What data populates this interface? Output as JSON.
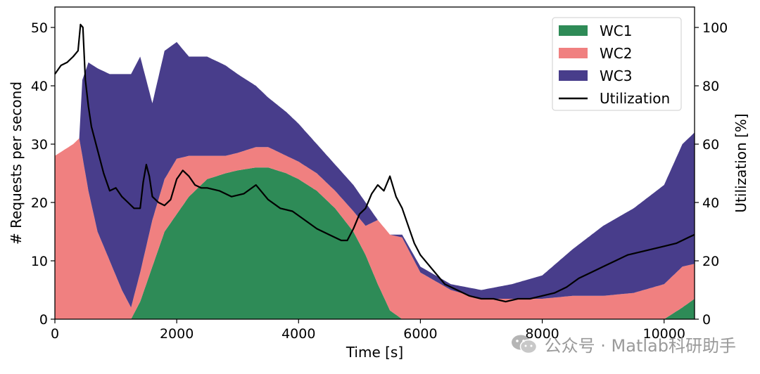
{
  "chart_data": {
    "type": "area",
    "xlabel": "Time [s]",
    "ylabel": "# Requests per second",
    "y2label": "Utilization [%]",
    "xlim": [
      0,
      10500
    ],
    "ylim": [
      0,
      53.5
    ],
    "y2lim": [
      0,
      107
    ],
    "xticks": [
      0,
      2000,
      4000,
      6000,
      8000,
      10000
    ],
    "yticks": [
      0,
      10,
      20,
      30,
      40,
      50
    ],
    "y2ticks": [
      0,
      20,
      40,
      60,
      80,
      100
    ],
    "legend_position": "top-right",
    "stack_order": [
      "WC1",
      "WC2",
      "WC3"
    ],
    "series": [
      {
        "name": "WC1",
        "color": "#2e8b57",
        "x": [
          0,
          1000,
          1250,
          1400,
          1600,
          1800,
          2000,
          2200,
          2500,
          2800,
          3000,
          3300,
          3500,
          3800,
          4000,
          4300,
          4600,
          4900,
          5100,
          5300,
          5500,
          5700,
          6000,
          8000,
          9500,
          10000,
          10300,
          10500
        ],
        "values": [
          0,
          0,
          0,
          3,
          9,
          15,
          18,
          21,
          24,
          25,
          25.5,
          26,
          26,
          25,
          24,
          22,
          19,
          15,
          11,
          6,
          1.5,
          0,
          0,
          0,
          0,
          0,
          2,
          3.5
        ]
      },
      {
        "name": "WC2",
        "color": "#f08080",
        "x": [
          0,
          300,
          400,
          450,
          550,
          700,
          900,
          1100,
          1250,
          1400,
          1600,
          1800,
          2000,
          2200,
          2500,
          2800,
          3000,
          3300,
          3500,
          3800,
          4000,
          4300,
          4600,
          4900,
          5100,
          5300,
          5500,
          5700,
          6000,
          6500,
          7000,
          7500,
          8000,
          8500,
          9000,
          9500,
          10000,
          10300,
          10500
        ],
        "values": [
          28,
          30,
          31,
          28,
          22,
          15,
          10,
          5,
          2,
          5,
          8,
          9,
          9.5,
          7,
          4,
          3,
          3,
          3.5,
          3.5,
          3,
          3,
          3,
          3,
          3.5,
          5,
          11,
          13,
          14,
          8,
          5,
          3.5,
          3.5,
          3.5,
          4,
          4,
          4.5,
          6,
          7,
          6
        ]
      },
      {
        "name": "WC3",
        "color": "#483d8b",
        "x": [
          0,
          300,
          400,
          450,
          550,
          700,
          900,
          1100,
          1250,
          1400,
          1600,
          1800,
          2000,
          2200,
          2500,
          2800,
          3000,
          3300,
          3500,
          3800,
          4000,
          4300,
          4600,
          4900,
          5100,
          5300,
          5500,
          5700,
          6000,
          6500,
          7000,
          7500,
          8000,
          8500,
          9000,
          9500,
          10000,
          10300,
          10500
        ],
        "values": [
          0,
          0,
          0,
          13,
          22,
          28,
          32,
          37,
          40,
          37,
          20,
          22,
          20,
          17,
          17,
          15.5,
          13.5,
          10.5,
          8.5,
          7.5,
          6.5,
          5,
          4.5,
          4.5,
          4,
          0,
          0,
          0.5,
          1,
          1,
          1.5,
          2.5,
          4,
          8,
          12,
          14.5,
          17,
          21,
          22.5
        ]
      }
    ],
    "utilization": {
      "name": "Utilization",
      "color": "#000000",
      "x": [
        0,
        100,
        200,
        300,
        380,
        420,
        460,
        500,
        550,
        600,
        700,
        800,
        900,
        1000,
        1100,
        1200,
        1300,
        1400,
        1450,
        1500,
        1550,
        1600,
        1700,
        1800,
        1900,
        2000,
        2100,
        2200,
        2300,
        2400,
        2500,
        2700,
        2900,
        3100,
        3300,
        3500,
        3700,
        3900,
        4100,
        4300,
        4500,
        4700,
        4800,
        4900,
        5000,
        5100,
        5200,
        5300,
        5400,
        5500,
        5600,
        5700,
        5800,
        5900,
        6000,
        6200,
        6400,
        6600,
        6800,
        7000,
        7200,
        7400,
        7600,
        7800,
        8000,
        8200,
        8400,
        8600,
        8800,
        9000,
        9200,
        9400,
        9600,
        9800,
        10000,
        10200,
        10400,
        10500
      ],
      "values": [
        84,
        87,
        88,
        90,
        92,
        101,
        100,
        82,
        73,
        66,
        58,
        50,
        44,
        45,
        42,
        40,
        38,
        38,
        47,
        53,
        49,
        42,
        40,
        39,
        41,
        48,
        51,
        49,
        46,
        45,
        45,
        44,
        42,
        43,
        46,
        41,
        38,
        37,
        34,
        31,
        29,
        27,
        27,
        31,
        36,
        38,
        43,
        46,
        44,
        49,
        42,
        38,
        32,
        26,
        22,
        17,
        12,
        10,
        8,
        7,
        7,
        6,
        7,
        7,
        8,
        9,
        11,
        14,
        16,
        18,
        20,
        22,
        23,
        24,
        25,
        26,
        28,
        29
      ]
    }
  },
  "watermark": {
    "text": "公众号 · Matlab科研助手"
  }
}
